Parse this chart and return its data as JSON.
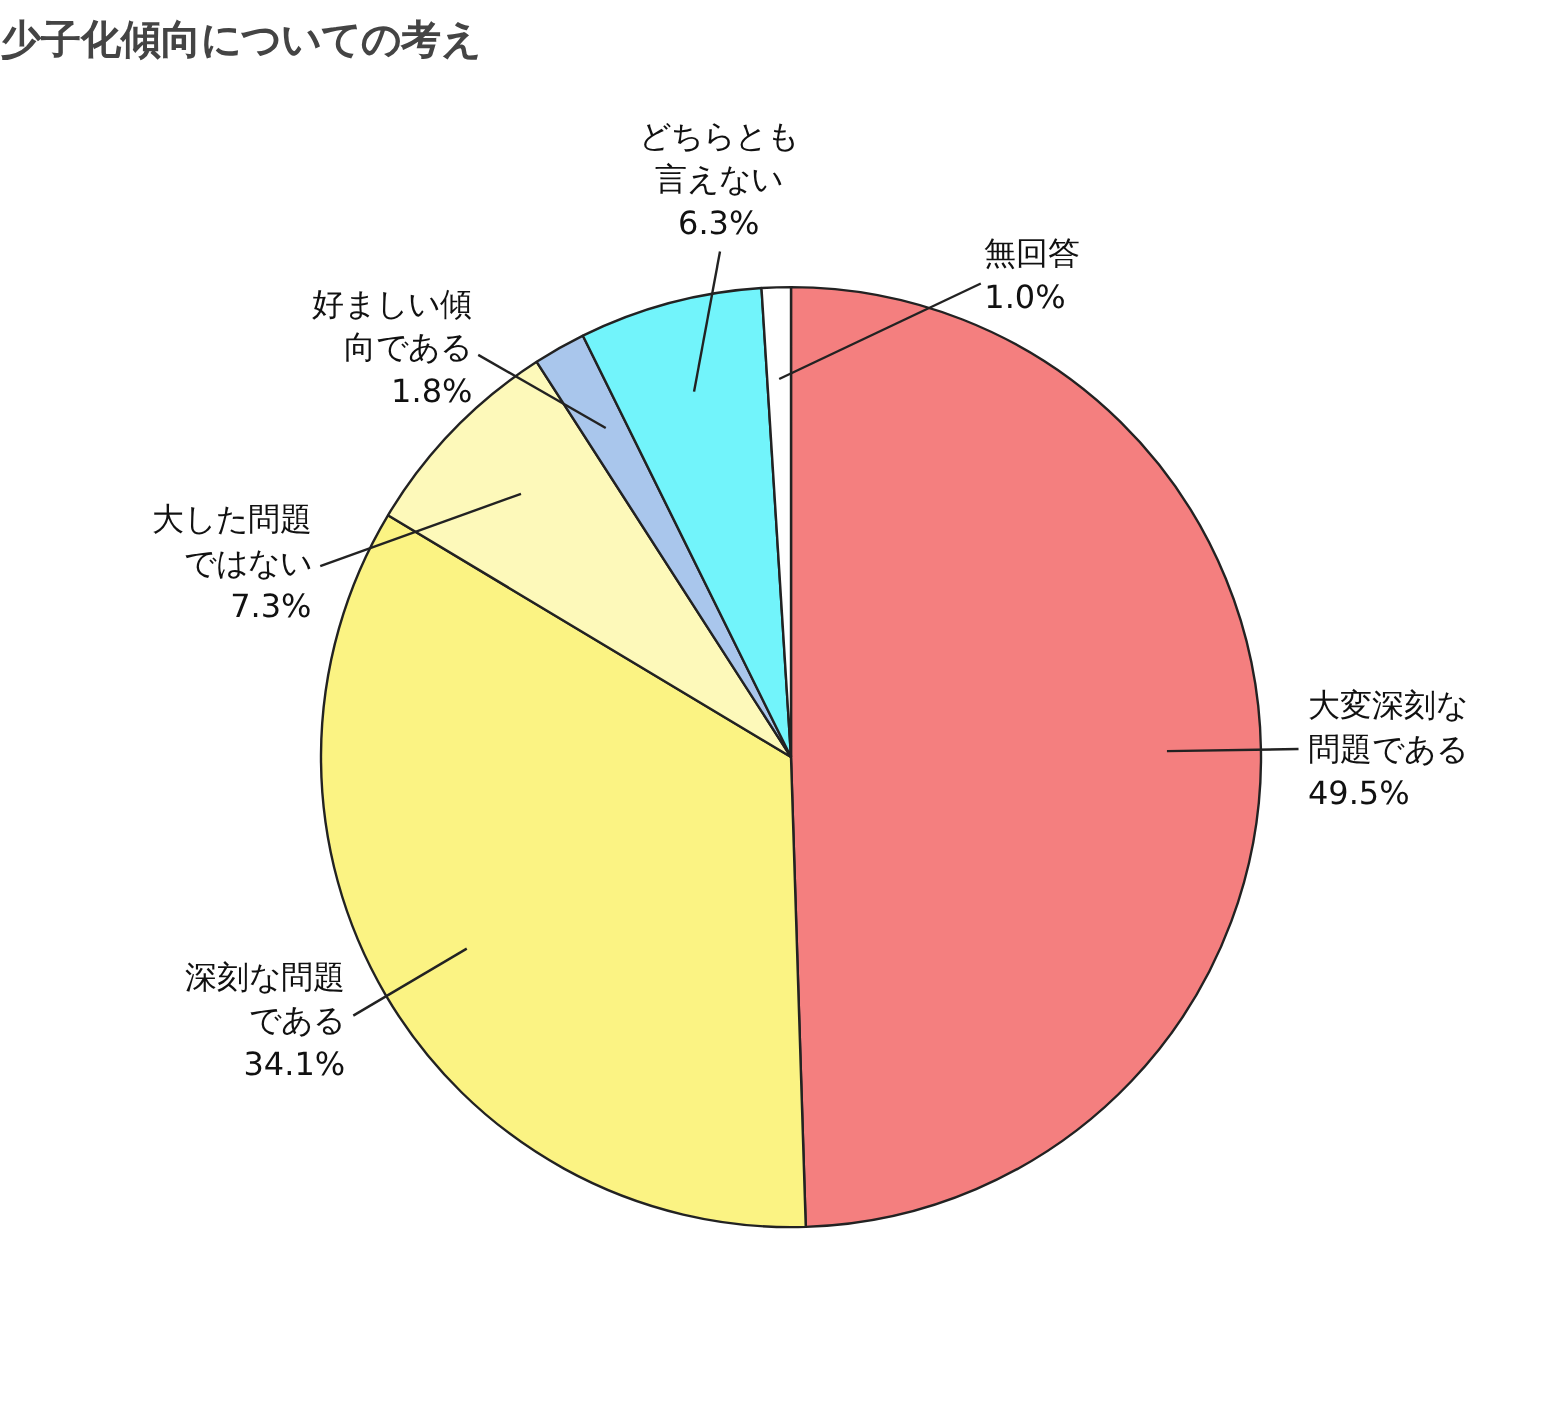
{
  "chart_data": {
    "type": "pie",
    "title": "少子化傾向についての考え",
    "categories": [
      "大変深刻な問題である",
      "深刻な問題である",
      "大した問題ではない",
      "好ましい傾向である",
      "どちらとも言えない",
      "無回答"
    ],
    "values": [
      49.5,
      34.1,
      7.3,
      1.8,
      6.3,
      1.0
    ],
    "value_labels": [
      "49.5%",
      "34.1%",
      "7.3%",
      "1.8%",
      "6.3%",
      "1.0%"
    ],
    "colors": [
      "#f47f7f",
      "#fbf383",
      "#fdf9ba",
      "#a9c6ec",
      "#72f4fb",
      "#ffffff"
    ]
  }
}
